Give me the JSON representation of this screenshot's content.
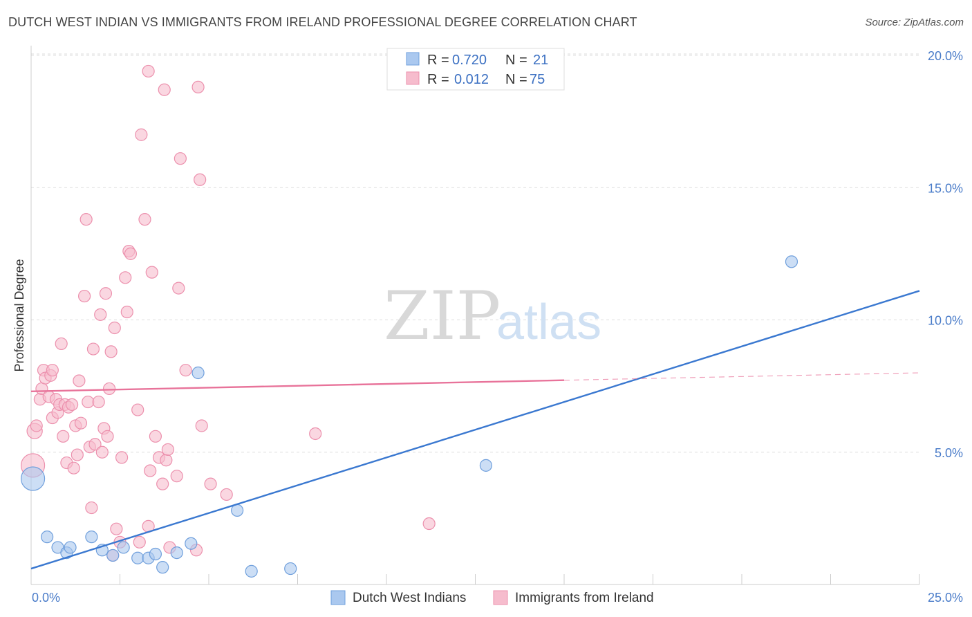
{
  "header": {
    "title": "DUTCH WEST INDIAN VS IMMIGRANTS FROM IRELAND PROFESSIONAL DEGREE CORRELATION CHART",
    "source": "Source: ZipAtlas.com"
  },
  "watermark": {
    "zip": "ZIP",
    "atlas": "atlas"
  },
  "colors": {
    "blue_fill": "#aac8ef",
    "blue_stroke": "#6f9fdc",
    "blue_line": "#3a78d0",
    "pink_fill": "#f6bccd",
    "pink_stroke": "#ec90ad",
    "pink_line": "#e8739a",
    "grid": "#dddddd",
    "tick_text": "#4a7cc9"
  },
  "legend_top": {
    "rows": [
      {
        "r_label": "R =",
        "r_value": "0.720",
        "n_label": "N =",
        "n_value": "21"
      },
      {
        "r_label": "R =",
        "r_value": "0.012",
        "n_label": "N =",
        "n_value": "75"
      }
    ]
  },
  "chart_data": {
    "type": "scatter",
    "title": "DUTCH WEST INDIAN VS IMMIGRANTS FROM IRELAND PROFESSIONAL DEGREE CORRELATION CHART",
    "xlabel": "",
    "ylabel": "Professional Degree",
    "xlim": [
      0,
      25
    ],
    "ylim": [
      0,
      20
    ],
    "x_tick_labels": [
      "0.0%",
      "25.0%"
    ],
    "y_ticks": [
      5,
      10,
      15,
      20
    ],
    "y_tick_labels": [
      "5.0%",
      "10.0%",
      "15.0%",
      "20.0%"
    ],
    "grid": true,
    "legend_position": "bottom",
    "series": [
      {
        "name": "Dutch West Indians",
        "r": 0.72,
        "n": 21,
        "trend": {
          "x0": 0,
          "y0": 0.6,
          "x1": 25,
          "y1": 11.1,
          "solid_until": 25
        },
        "points": [
          [
            0.05,
            4.0,
            2
          ],
          [
            0.45,
            1.8,
            1
          ],
          [
            0.75,
            1.4,
            1
          ],
          [
            1.0,
            1.2,
            1
          ],
          [
            1.1,
            1.4,
            1
          ],
          [
            1.7,
            1.8,
            1
          ],
          [
            2.0,
            1.3,
            1
          ],
          [
            2.3,
            1.1,
            1
          ],
          [
            2.6,
            1.4,
            1
          ],
          [
            3.0,
            1.0,
            1
          ],
          [
            3.3,
            1.0,
            1
          ],
          [
            3.5,
            1.15,
            1
          ],
          [
            3.7,
            0.65,
            1
          ],
          [
            4.1,
            1.2,
            1
          ],
          [
            4.5,
            1.55,
            1
          ],
          [
            4.7,
            8.0,
            1
          ],
          [
            5.8,
            2.8,
            1
          ],
          [
            6.2,
            0.5,
            1
          ],
          [
            7.3,
            0.6,
            1
          ],
          [
            12.8,
            4.5,
            1
          ],
          [
            21.4,
            12.2,
            1
          ]
        ]
      },
      {
        "name": "Immigrants from Ireland",
        "r": 0.012,
        "n": 75,
        "trend": {
          "x0": 0,
          "y0": 7.3,
          "x1": 25,
          "y1": 8.0,
          "solid_until": 15
        },
        "points": [
          [
            0.05,
            4.5,
            2
          ],
          [
            0.1,
            5.8,
            1.3
          ],
          [
            0.15,
            6.0,
            1
          ],
          [
            0.25,
            7.0,
            1
          ],
          [
            0.3,
            7.4,
            1
          ],
          [
            0.35,
            8.1,
            1
          ],
          [
            0.4,
            7.8,
            1
          ],
          [
            0.5,
            7.1,
            1
          ],
          [
            0.55,
            7.9,
            1
          ],
          [
            0.6,
            8.1,
            1
          ],
          [
            0.6,
            6.3,
            1
          ],
          [
            0.7,
            7.0,
            1
          ],
          [
            0.75,
            6.5,
            1
          ],
          [
            0.8,
            6.8,
            1
          ],
          [
            0.85,
            9.1,
            1
          ],
          [
            0.9,
            5.6,
            1
          ],
          [
            0.95,
            6.8,
            1
          ],
          [
            1.0,
            4.6,
            1
          ],
          [
            1.05,
            6.7,
            1
          ],
          [
            1.15,
            6.8,
            1
          ],
          [
            1.2,
            4.4,
            1
          ],
          [
            1.25,
            6.0,
            1
          ],
          [
            1.3,
            4.9,
            1
          ],
          [
            1.35,
            7.7,
            1
          ],
          [
            1.4,
            6.1,
            1
          ],
          [
            1.5,
            10.9,
            1
          ],
          [
            1.55,
            13.8,
            1
          ],
          [
            1.6,
            6.9,
            1
          ],
          [
            1.65,
            5.2,
            1
          ],
          [
            1.7,
            2.9,
            1
          ],
          [
            1.75,
            8.9,
            1
          ],
          [
            1.8,
            5.3,
            1
          ],
          [
            1.9,
            6.9,
            1
          ],
          [
            1.95,
            10.2,
            1
          ],
          [
            2.0,
            5.0,
            1
          ],
          [
            2.05,
            5.9,
            1
          ],
          [
            2.1,
            11.0,
            1
          ],
          [
            2.15,
            5.6,
            1
          ],
          [
            2.2,
            7.4,
            1
          ],
          [
            2.25,
            8.8,
            1
          ],
          [
            2.3,
            1.1,
            1
          ],
          [
            2.35,
            9.7,
            1
          ],
          [
            2.4,
            2.1,
            1
          ],
          [
            2.5,
            1.6,
            1
          ],
          [
            2.55,
            4.8,
            1
          ],
          [
            2.65,
            11.6,
            1
          ],
          [
            2.7,
            10.3,
            1
          ],
          [
            2.75,
            12.6,
            1
          ],
          [
            2.8,
            12.5,
            1
          ],
          [
            3.0,
            6.6,
            1
          ],
          [
            3.05,
            1.6,
            1
          ],
          [
            3.1,
            17.0,
            1
          ],
          [
            3.2,
            13.8,
            1
          ],
          [
            3.3,
            19.4,
            1
          ],
          [
            3.3,
            2.2,
            1
          ],
          [
            3.35,
            4.3,
            1
          ],
          [
            3.4,
            11.8,
            1
          ],
          [
            3.5,
            5.6,
            1
          ],
          [
            3.6,
            4.8,
            1
          ],
          [
            3.7,
            3.8,
            1
          ],
          [
            3.75,
            18.7,
            1
          ],
          [
            3.8,
            4.7,
            1
          ],
          [
            3.85,
            5.1,
            1
          ],
          [
            3.9,
            1.4,
            1
          ],
          [
            4.1,
            4.1,
            1
          ],
          [
            4.15,
            11.2,
            1
          ],
          [
            4.2,
            16.1,
            1
          ],
          [
            4.35,
            8.1,
            1
          ],
          [
            4.65,
            1.3,
            1
          ],
          [
            4.7,
            18.8,
            1
          ],
          [
            4.75,
            15.3,
            1
          ],
          [
            4.8,
            6.0,
            1
          ],
          [
            5.05,
            3.8,
            1
          ],
          [
            5.5,
            3.4,
            1
          ],
          [
            8.0,
            5.7,
            1
          ],
          [
            11.2,
            2.3,
            1
          ]
        ]
      }
    ]
  }
}
